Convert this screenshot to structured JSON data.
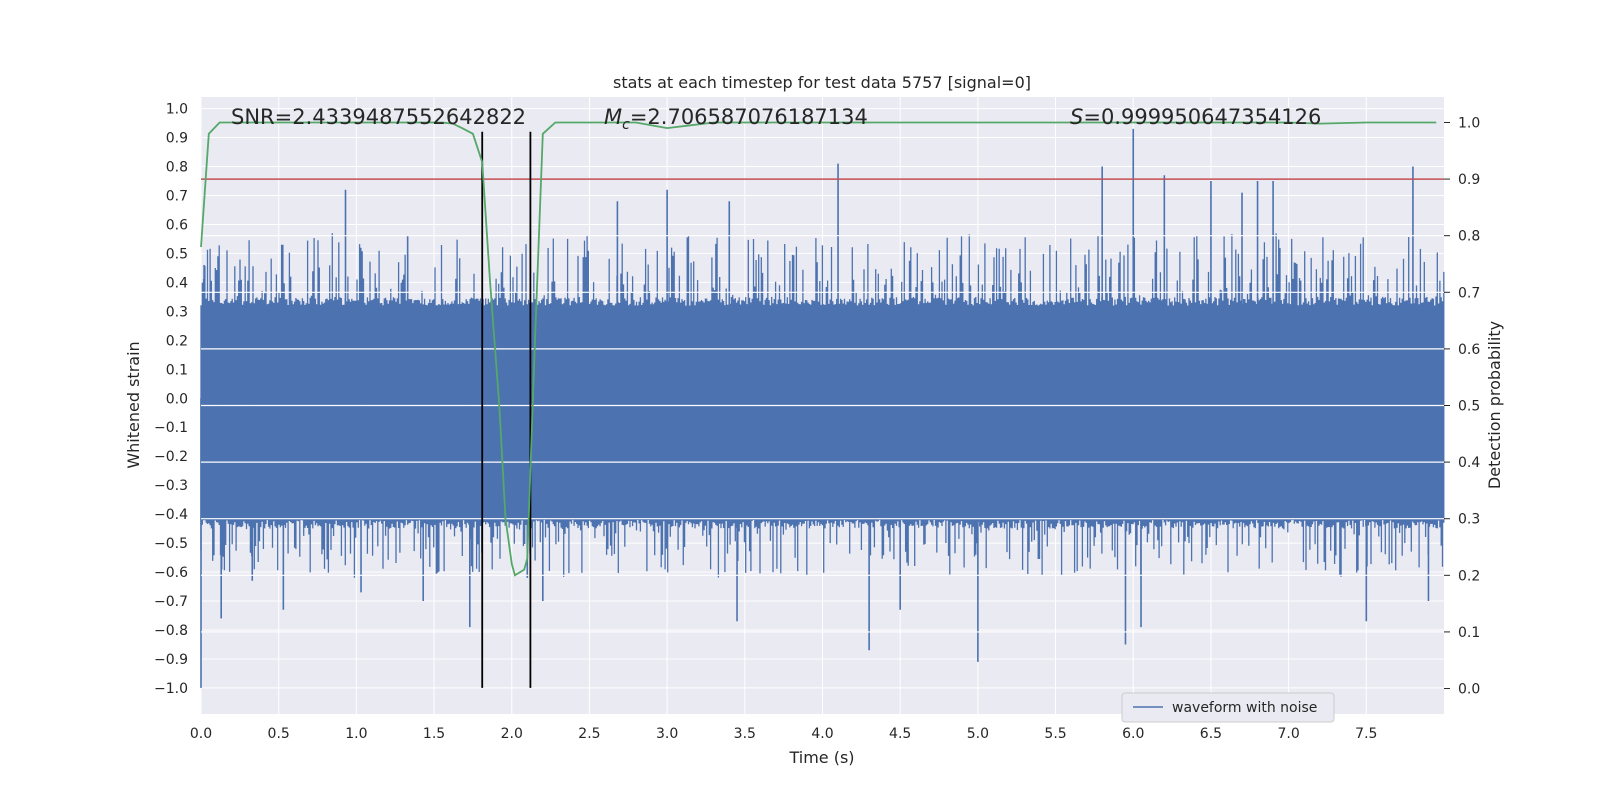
{
  "chart_data": {
    "type": "line",
    "title": "stats at each timestep for test data 5757 [signal=0]",
    "xlabel": "Time (s)",
    "ylabel": "Whitened strain",
    "y2label": "Detection probability",
    "xlim": [
      0,
      8
    ],
    "ylim": [
      -1.09,
      1.04
    ],
    "y2lim": [
      -0.045,
      1.045
    ],
    "x_ticks": [
      0.0,
      0.5,
      1.0,
      1.5,
      2.0,
      2.5,
      3.0,
      3.5,
      4.0,
      4.5,
      5.0,
      5.5,
      6.0,
      6.5,
      7.0,
      7.5
    ],
    "x_tick_labels": [
      "0.0",
      "0.5",
      "1.0",
      "1.5",
      "2.0",
      "2.5",
      "3.0",
      "3.5",
      "4.0",
      "4.5",
      "5.0",
      "5.5",
      "6.0",
      "6.5",
      "7.0",
      "7.5"
    ],
    "y_ticks": [
      1.0,
      0.9,
      0.8,
      0.7,
      0.6,
      0.5,
      0.4,
      0.3,
      0.2,
      0.1,
      0.0,
      -0.1,
      -0.2,
      -0.3,
      -0.4,
      -0.5,
      -0.6,
      -0.7,
      -0.8,
      -0.9,
      -1.0
    ],
    "y_tick_labels": [
      "1.0",
      "0.9",
      "0.8",
      "0.7",
      "0.6",
      "0.5",
      "0.4",
      "0.3",
      "0.2",
      "0.1",
      "0.0",
      "−0.1",
      "−0.2",
      "−0.3",
      "−0.4",
      "−0.5",
      "−0.6",
      "−0.7",
      "−0.8",
      "−0.9",
      "−1.0"
    ],
    "y2_ticks": [
      1.0,
      0.9,
      0.8,
      0.7,
      0.6,
      0.5,
      0.4,
      0.3,
      0.2,
      0.1,
      0.0
    ],
    "y2_tick_labels": [
      "1.0",
      "0.9",
      "0.8",
      "0.7",
      "0.6",
      "0.5",
      "0.4",
      "0.3",
      "0.2",
      "0.1",
      "0.0"
    ],
    "annotations": {
      "snr": "SNR=2.4339487552642822",
      "mc_symbol": "M",
      "mc_subscript": "c",
      "mc_value": "=2.706587076187134",
      "s_symbol": "S",
      "s_value": "=0.999950647354126"
    },
    "threshold": {
      "axis": "y2",
      "value": 0.9,
      "color": "#c44e52"
    },
    "vertical_lines": {
      "x": [
        1.81,
        2.12
      ],
      "y_range": [
        -1.0,
        0.92
      ],
      "color": "#000000"
    },
    "waveform": {
      "name": "waveform with noise",
      "color": "#4c72b0",
      "x_range": [
        0,
        8
      ],
      "dense_band": [
        -0.42,
        0.32
      ],
      "spikes": [
        {
          "x": 0.0,
          "y": -1.0
        },
        {
          "x": 0.02,
          "y": 0.46
        },
        {
          "x": 0.13,
          "y": -0.76
        },
        {
          "x": 0.33,
          "y": -0.63
        },
        {
          "x": 0.53,
          "y": -0.73
        },
        {
          "x": 0.93,
          "y": 0.72
        },
        {
          "x": 1.03,
          "y": -0.67
        },
        {
          "x": 1.33,
          "y": 0.56
        },
        {
          "x": 1.43,
          "y": -0.7
        },
        {
          "x": 1.73,
          "y": -0.79
        },
        {
          "x": 2.1,
          "y": -0.62
        },
        {
          "x": 2.2,
          "y": -0.7
        },
        {
          "x": 2.68,
          "y": 0.68
        },
        {
          "x": 3.0,
          "y": 0.72
        },
        {
          "x": 3.4,
          "y": 0.68
        },
        {
          "x": 3.45,
          "y": -0.77
        },
        {
          "x": 4.1,
          "y": 0.81
        },
        {
          "x": 4.3,
          "y": -0.87
        },
        {
          "x": 4.5,
          "y": -0.73
        },
        {
          "x": 5.0,
          "y": -0.91
        },
        {
          "x": 5.8,
          "y": 0.8
        },
        {
          "x": 5.95,
          "y": -0.85
        },
        {
          "x": 6.0,
          "y": 0.93
        },
        {
          "x": 6.05,
          "y": -0.79
        },
        {
          "x": 6.2,
          "y": 0.77
        },
        {
          "x": 6.5,
          "y": 0.75
        },
        {
          "x": 6.7,
          "y": 0.71
        },
        {
          "x": 6.8,
          "y": 0.75
        },
        {
          "x": 6.9,
          "y": 0.75
        },
        {
          "x": 7.5,
          "y": -0.77
        },
        {
          "x": 7.8,
          "y": 0.8
        },
        {
          "x": 7.9,
          "y": -0.7
        }
      ]
    },
    "probability": {
      "name": "detection probability",
      "color": "#55a868",
      "x": [
        0.0,
        0.05,
        0.12,
        0.3,
        0.6,
        1.0,
        1.3,
        1.55,
        1.62,
        1.68,
        1.75,
        1.81,
        1.86,
        1.92,
        1.96,
        2.0,
        2.02,
        2.08,
        2.1,
        2.15,
        2.2,
        2.28,
        2.5,
        2.8,
        3.0,
        3.15,
        3.3,
        3.6,
        4.0,
        5.0,
        6.0,
        7.0,
        7.2,
        7.5,
        7.95
      ],
      "y": [
        0.78,
        0.98,
        1.0,
        1.0,
        1.0,
        1.0,
        1.0,
        1.0,
        0.998,
        0.99,
        0.98,
        0.93,
        0.72,
        0.5,
        0.3,
        0.22,
        0.2,
        0.21,
        0.23,
        0.62,
        0.98,
        1.0,
        1.0,
        1.0,
        0.99,
        0.995,
        1.0,
        1.0,
        1.0,
        1.0,
        1.0,
        1.0,
        0.998,
        1.0,
        1.0
      ]
    },
    "legend": {
      "location": "lower-right",
      "entries": [
        "waveform with noise"
      ]
    }
  }
}
